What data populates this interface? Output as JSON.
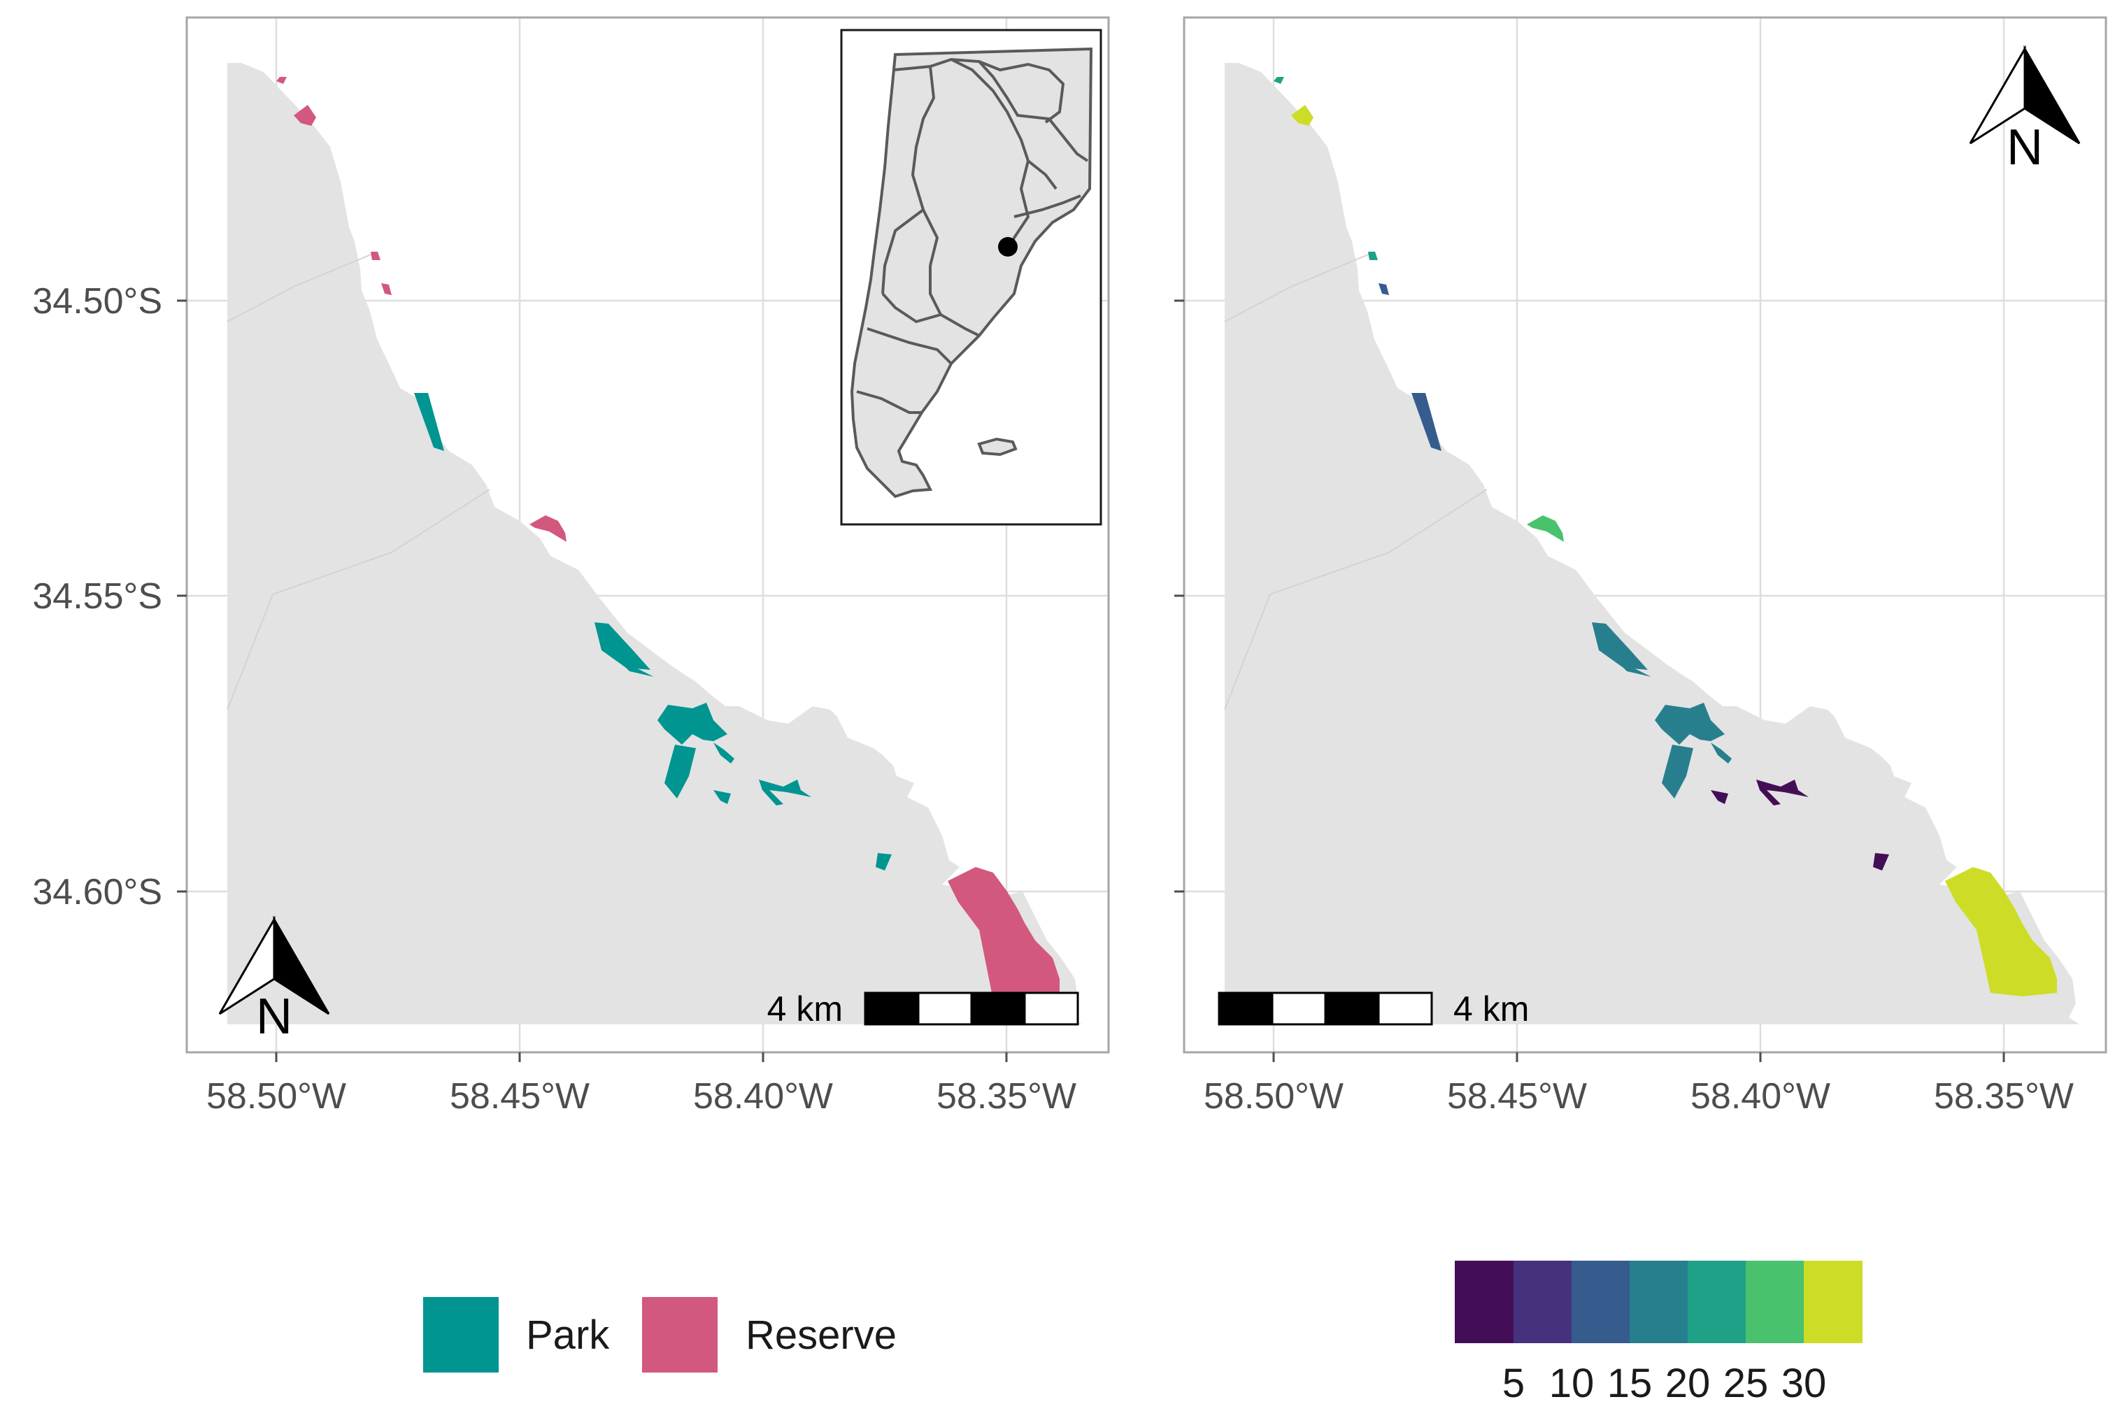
{
  "colors": {
    "land": "#e3e3e3",
    "grid": "#dedede",
    "panel_border": "#a6a6a6",
    "park": "#009591",
    "reserve": "#d2587e",
    "inset_outline": "#5a5a5a",
    "viridis": [
      "#440e57",
      "#46317e",
      "#365c8d",
      "#277f8e",
      "#1fa187",
      "#4ac16d",
      "#cddd27"
    ]
  },
  "axes": {
    "x_tick_labels": [
      "58.50°W",
      "58.45°W",
      "58.40°W",
      "58.35°W"
    ],
    "y_tick_labels": [
      "34.50°S",
      "34.55°S",
      "34.60°S"
    ]
  },
  "left_map": {
    "scale_bar_label": "4 km",
    "north_arrow_label": "N",
    "legend": {
      "items": [
        {
          "label": "Park",
          "color": "#009591"
        },
        {
          "label": "Reserve",
          "color": "#d2587e"
        }
      ]
    }
  },
  "right_map": {
    "scale_bar_label": "4 km",
    "north_arrow_label": "N",
    "legend": {
      "ticks": [
        "5",
        "10",
        "15",
        "20",
        "25",
        "30"
      ]
    }
  },
  "icons": {
    "north_arrow": "north-arrow-icon",
    "location_marker": "location-dot-icon"
  }
}
